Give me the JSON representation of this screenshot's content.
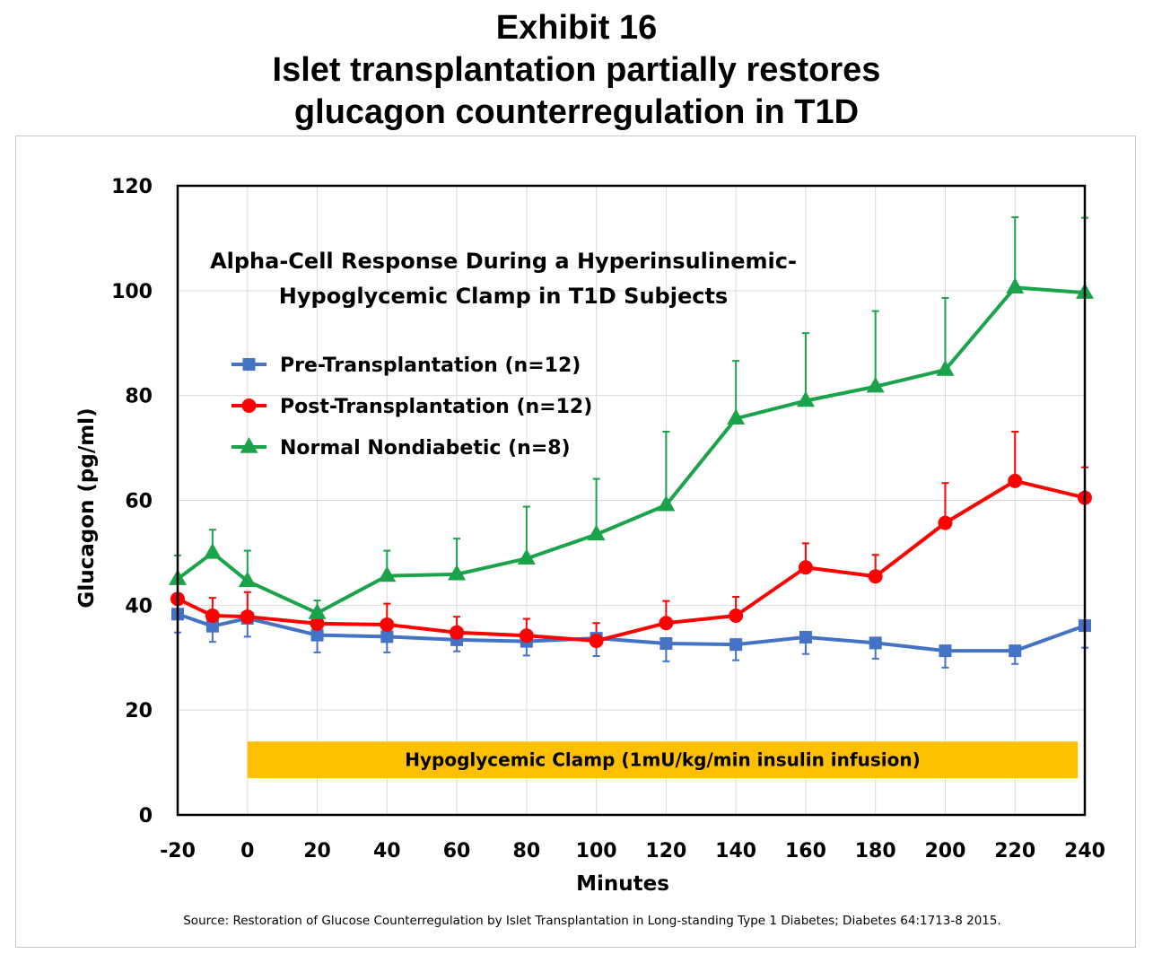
{
  "header": {
    "exhibit": "Exhibit 16",
    "title_line1": "Islet transplantation partially restores",
    "title_line2": "glucagon counterregulation in T1D"
  },
  "chart_data": {
    "type": "line",
    "title_line1": "Alpha-Cell Response During a Hyperinsulinemic-",
    "title_line2": "Hypoglycemic Clamp in T1D Subjects",
    "xlabel": "Minutes",
    "ylabel": "Glucagon (pg/ml)",
    "xlim": [
      -20,
      240
    ],
    "ylim": [
      0,
      120
    ],
    "x_ticks": [
      -20,
      0,
      20,
      40,
      60,
      80,
      100,
      120,
      140,
      160,
      180,
      200,
      220,
      240
    ],
    "y_ticks": [
      0,
      20,
      40,
      60,
      80,
      100,
      120
    ],
    "grid": true,
    "legend_position": "upper-left",
    "x": [
      -20,
      -10,
      0,
      20,
      40,
      60,
      80,
      100,
      120,
      140,
      160,
      180,
      200,
      220,
      240
    ],
    "series": [
      {
        "name": "Pre-Transplantation (n=12)",
        "color": "#4472c4",
        "marker": "square",
        "values": [
          38.3,
          36.0,
          37.5,
          34.3,
          34.0,
          33.4,
          33.1,
          33.7,
          32.7,
          32.5,
          33.9,
          32.8,
          31.3,
          31.3,
          36.1
        ],
        "errors": [
          3.5,
          3.0,
          3.5,
          3.3,
          3.0,
          2.2,
          2.7,
          3.4,
          3.4,
          3.0,
          3.2,
          3.0,
          3.2,
          2.5,
          4.2
        ]
      },
      {
        "name": "Post-Transplantation (n=12)",
        "color": "#ff0000",
        "marker": "circle",
        "values": [
          41.2,
          38.0,
          37.8,
          36.5,
          36.3,
          34.8,
          34.2,
          33.2,
          36.6,
          38.0,
          47.2,
          45.5,
          55.7,
          63.7,
          60.5
        ],
        "errors": [
          0,
          3.4,
          4.7,
          0,
          4.0,
          3.0,
          3.2,
          3.4,
          4.2,
          3.6,
          4.6,
          4.1,
          7.6,
          9.4,
          5.8
        ]
      },
      {
        "name": "Normal Nondiabetic (n=8)",
        "color": "#1aa34a",
        "marker": "triangle",
        "values": [
          45.0,
          50.0,
          44.6,
          38.5,
          45.6,
          45.9,
          48.9,
          53.5,
          59.1,
          75.6,
          79.0,
          81.7,
          84.9,
          100.6,
          99.6
        ],
        "errors": [
          4.5,
          4.4,
          5.8,
          2.4,
          4.8,
          6.8,
          9.9,
          10.6,
          14.0,
          11.0,
          12.9,
          14.4,
          13.7,
          13.4,
          14.3
        ]
      }
    ],
    "band": {
      "label": "Hypoglycemic Clamp  (1mU/kg/min insulin infusion)",
      "x_start": 0,
      "x_end": 238,
      "y_low": 7,
      "y_high": 14,
      "color": "#ffc000"
    },
    "source": "Source:  Restoration of Glucose Counterregulation by Islet Transplantation in Long-standing Type 1 Diabetes; Diabetes 64:1713-8 2015."
  }
}
